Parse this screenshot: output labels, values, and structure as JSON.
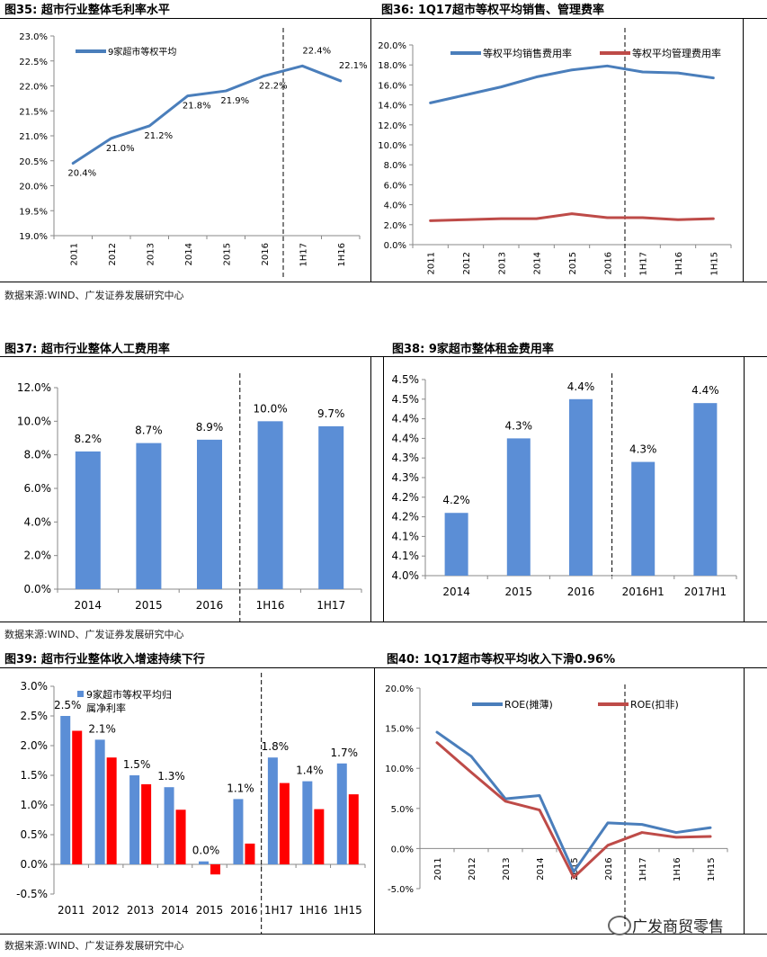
{
  "titles": {
    "c35": "图35:  超市行业整体毛利率水平",
    "c36": "图36:  1Q17超市等权平均销售、管理费率",
    "c37": "图37:  超市行业整体人工费用率",
    "c38": "图38:  9家超市整体租金费用率",
    "c39": "图39:  超市行业整体收入增速持续下行",
    "c40": "图40:  1Q17超市等权平均收入下滑0.96%"
  },
  "sources": {
    "s1": "数据来源:WIND、广发证券发展研究中心",
    "s2": "数据来源:WIND、广发证券发展研究中心",
    "s3": "数据来源:WIND、广发证券发展研究中心"
  },
  "watermark": "广发商贸零售",
  "colors": {
    "blue": "#4A7EBB",
    "red": "#BE4B48",
    "bar_blue": "#5B8ED6",
    "bar_red": "#FF0000"
  },
  "chart_data": [
    {
      "id": "c35",
      "type": "line",
      "categories": [
        "2011",
        "2012",
        "2013",
        "2014",
        "2015",
        "2016",
        "1H17",
        "1H16"
      ],
      "series": [
        {
          "name": "9家超市等权平均",
          "values": [
            20.45,
            20.95,
            21.2,
            21.8,
            21.9,
            22.2,
            22.4,
            22.1
          ],
          "labels": [
            "20.4%",
            "21.0%",
            "21.2%",
            "21.8%",
            "21.9%",
            "22.2%",
            "22.4%",
            "22.1%"
          ]
        }
      ],
      "ylim": [
        19.0,
        23.0
      ],
      "yticks": [
        "19.0%",
        "19.5%",
        "20.0%",
        "20.5%",
        "21.0%",
        "21.5%",
        "22.0%",
        "22.5%",
        "23.0%"
      ],
      "legend": "top-left",
      "divider_after": "2016"
    },
    {
      "id": "c36",
      "type": "line",
      "categories": [
        "2011",
        "2012",
        "2013",
        "2014",
        "2015",
        "2016",
        "1H17",
        "1H16",
        "1H15"
      ],
      "series": [
        {
          "name": "等权平均销售费用率",
          "values": [
            14.2,
            15.0,
            15.8,
            16.8,
            17.5,
            17.9,
            17.3,
            17.2,
            16.7
          ]
        },
        {
          "name": "等权平均管理费用率",
          "values": [
            2.4,
            2.5,
            2.6,
            2.6,
            3.1,
            2.7,
            2.7,
            2.5,
            2.6
          ]
        }
      ],
      "ylim": [
        0,
        20
      ],
      "yticks": [
        "0.0%",
        "2.0%",
        "4.0%",
        "6.0%",
        "8.0%",
        "10.0%",
        "12.0%",
        "14.0%",
        "16.0%",
        "18.0%",
        "20.0%"
      ],
      "legend": "top",
      "divider_after": "2016"
    },
    {
      "id": "c37",
      "type": "bar",
      "categories": [
        "2014",
        "2015",
        "2016",
        "1H16",
        "1H17"
      ],
      "values": [
        8.2,
        8.7,
        8.9,
        10.0,
        9.7
      ],
      "labels": [
        "8.2%",
        "8.7%",
        "8.9%",
        "10.0%",
        "9.7%"
      ],
      "ylim": [
        0,
        12
      ],
      "yticks": [
        "0.0%",
        "2.0%",
        "4.0%",
        "6.0%",
        "8.0%",
        "10.0%",
        "12.0%"
      ],
      "divider_after": "2016"
    },
    {
      "id": "c38",
      "type": "bar",
      "categories": [
        "2014",
        "2015",
        "2016",
        "2016H1",
        "2017H1"
      ],
      "values": [
        4.16,
        4.35,
        4.45,
        4.29,
        4.44
      ],
      "labels": [
        "4.2%",
        "4.3%",
        "4.4%",
        "4.3%",
        "4.4%"
      ],
      "ylim": [
        4.0,
        4.5
      ],
      "yticks": [
        "4.0%",
        "4.1%",
        "4.1%",
        "4.2%",
        "4.2%",
        "4.3%",
        "4.3%",
        "4.4%",
        "4.4%",
        "4.5%",
        "4.5%"
      ],
      "divider_after": "2016"
    },
    {
      "id": "c39",
      "type": "bar",
      "categories": [
        "2011",
        "2012",
        "2013",
        "2014",
        "2015",
        "2016",
        "1H17",
        "1H16",
        "1H15"
      ],
      "series": [
        {
          "name": "9家超市等权平均归属净利率",
          "values": [
            2.5,
            2.1,
            1.5,
            1.3,
            0.05,
            1.1,
            1.8,
            1.4,
            1.7
          ],
          "labels": [
            "2.5%",
            "2.1%",
            "1.5%",
            "1.3%",
            "0.0%",
            "1.1%",
            "1.8%",
            "1.4%",
            "1.7%"
          ]
        },
        {
          "name": "",
          "values": [
            2.25,
            1.8,
            1.35,
            0.92,
            -0.17,
            0.35,
            1.37,
            0.93,
            1.18
          ]
        }
      ],
      "ylim": [
        -0.5,
        3.0
      ],
      "yticks": [
        "-0.5%",
        "0.0%",
        "0.5%",
        "1.0%",
        "1.5%",
        "2.0%",
        "2.5%",
        "3.0%"
      ],
      "legend": "top-left",
      "divider_after": "2016"
    },
    {
      "id": "c40",
      "type": "line",
      "categories": [
        "2011",
        "2012",
        "2013",
        "2014",
        "2015",
        "2016",
        "1H17",
        "1H16",
        "1H15"
      ],
      "series": [
        {
          "name": "ROE(摊薄)",
          "values": [
            14.5,
            11.5,
            6.2,
            6.6,
            -2.9,
            3.2,
            3.0,
            2.0,
            2.6
          ]
        },
        {
          "name": "ROE(扣非)",
          "values": [
            13.2,
            9.5,
            5.9,
            4.8,
            -3.6,
            0.4,
            2.0,
            1.4,
            1.5
          ]
        }
      ],
      "ylim": [
        -5,
        20
      ],
      "yticks": [
        "-5.0%",
        "0.0%",
        "5.0%",
        "10.0%",
        "15.0%",
        "20.0%"
      ],
      "legend": "top",
      "divider_after": "2016"
    }
  ]
}
